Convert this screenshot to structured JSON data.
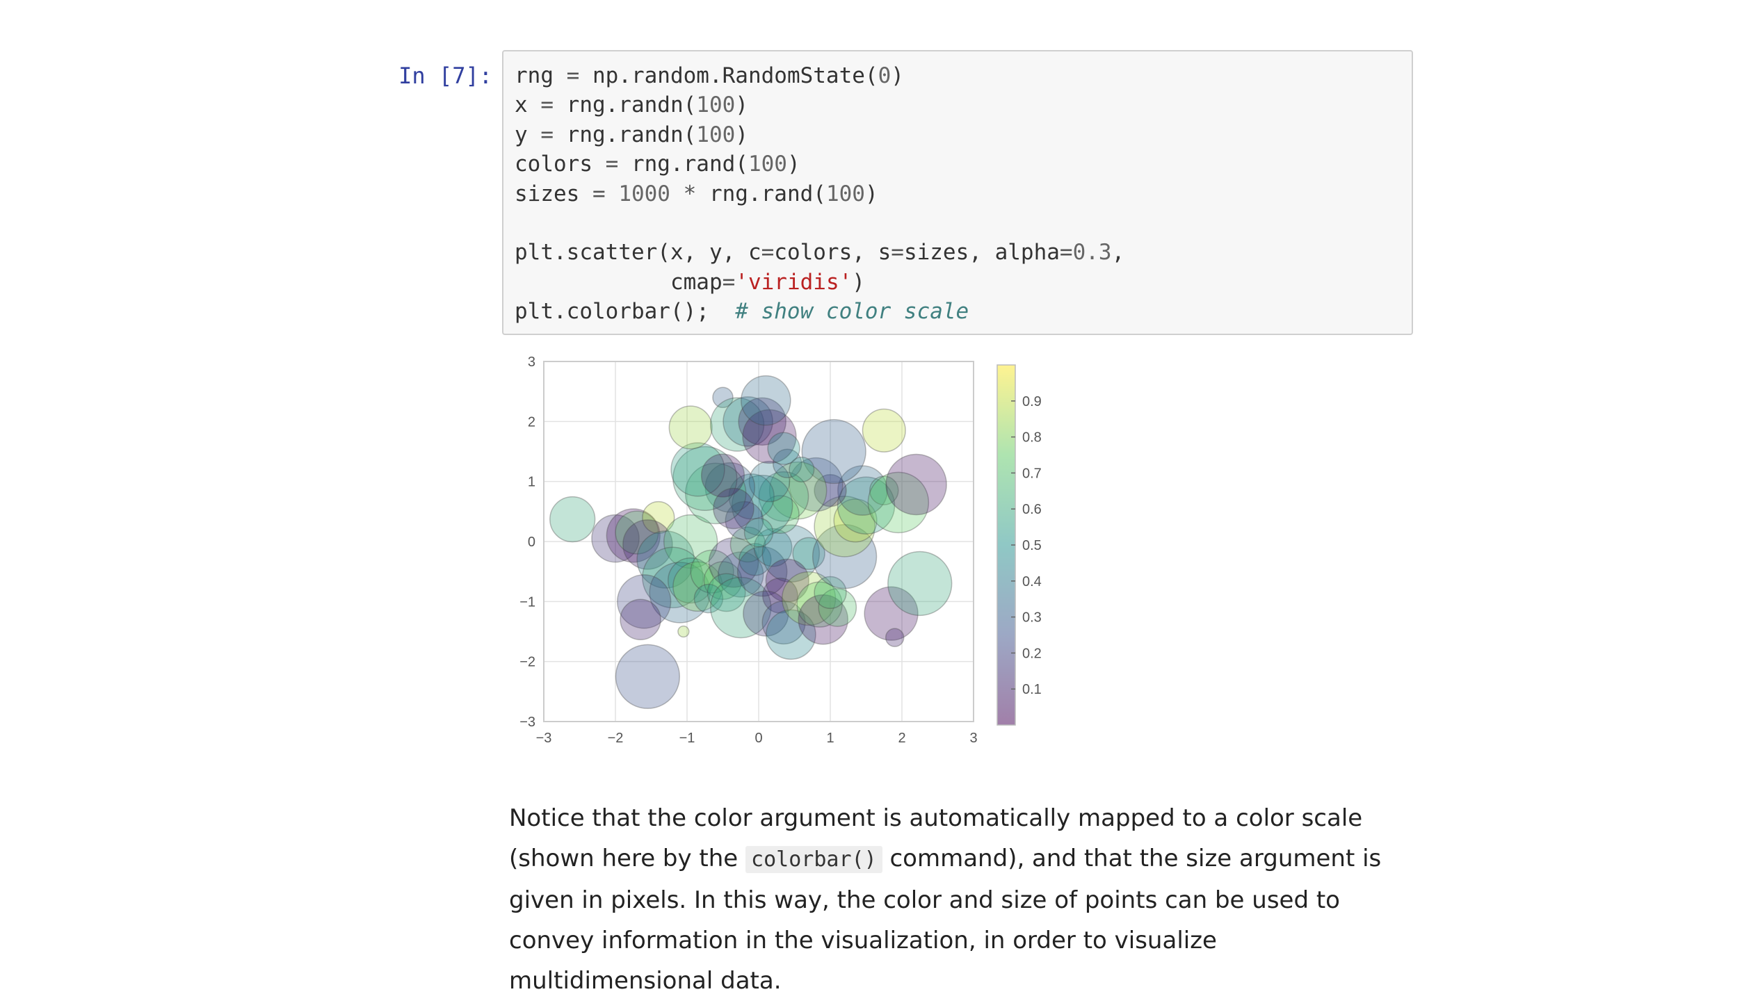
{
  "cell": {
    "prompt": "In [7]:",
    "code": [
      [
        [
          "rng ",
          ""
        ],
        [
          "= ",
          "op"
        ],
        [
          "np.random.RandomState(",
          ""
        ],
        [
          "0",
          "num"
        ],
        [
          ")",
          ""
        ]
      ],
      [
        [
          "x ",
          ""
        ],
        [
          "= ",
          "op"
        ],
        [
          "rng.randn(",
          ""
        ],
        [
          "100",
          "num"
        ],
        [
          ")",
          ""
        ]
      ],
      [
        [
          "y ",
          ""
        ],
        [
          "= ",
          "op"
        ],
        [
          "rng.randn(",
          ""
        ],
        [
          "100",
          "num"
        ],
        [
          ")",
          ""
        ]
      ],
      [
        [
          "colors ",
          ""
        ],
        [
          "= ",
          "op"
        ],
        [
          "rng.rand(",
          ""
        ],
        [
          "100",
          "num"
        ],
        [
          ")",
          ""
        ]
      ],
      [
        [
          "sizes ",
          ""
        ],
        [
          "= ",
          "op"
        ],
        [
          "1000",
          "num"
        ],
        [
          " * ",
          "op"
        ],
        [
          "rng.rand(",
          ""
        ],
        [
          "100",
          "num"
        ],
        [
          ")",
          ""
        ]
      ],
      [],
      [
        [
          "plt.scatter(x, y, c",
          ""
        ],
        [
          "=",
          "op"
        ],
        [
          "colors, s",
          ""
        ],
        [
          "=",
          "op"
        ],
        [
          "sizes, alpha",
          ""
        ],
        [
          "=",
          "op"
        ],
        [
          "0.3",
          "num"
        ],
        [
          ",",
          ""
        ]
      ],
      [
        [
          "            cmap",
          ""
        ],
        [
          "=",
          "op"
        ],
        [
          "'viridis'",
          "str"
        ],
        [
          ")",
          ""
        ]
      ],
      [
        [
          "plt.colorbar();  ",
          ""
        ],
        [
          "# show color scale",
          "com"
        ]
      ]
    ]
  },
  "chart_data": {
    "type": "scatter",
    "title": "",
    "xlabel": "",
    "ylabel": "",
    "xlim": [
      -3,
      3
    ],
    "ylim": [
      -3,
      3
    ],
    "xticks": [
      "−3",
      "−2",
      "−1",
      "0",
      "1",
      "2",
      "3"
    ],
    "yticks": [
      "−3",
      "−2",
      "−1",
      "0",
      "1",
      "2",
      "3"
    ],
    "grid": true,
    "alpha": 0.3,
    "colormap": "viridis",
    "colorbar": {
      "range": [
        0,
        1
      ],
      "ticks": [
        "0.1",
        "0.2",
        "0.3",
        "0.4",
        "0.5",
        "0.6",
        "0.7",
        "0.8",
        "0.9"
      ],
      "tick_values": [
        0.1,
        0.2,
        0.3,
        0.4,
        0.5,
        0.6,
        0.7,
        0.8,
        0.9
      ]
    },
    "points": [
      {
        "x": -2.6,
        "y": 0.37,
        "c": 0.6,
        "s": 500
      },
      {
        "x": -2.0,
        "y": 0.05,
        "c": 0.15,
        "s": 550
      },
      {
        "x": -1.75,
        "y": 0.1,
        "c": 0.05,
        "s": 700
      },
      {
        "x": -1.7,
        "y": 0.15,
        "c": 0.72,
        "s": 450
      },
      {
        "x": -1.4,
        "y": 0.4,
        "c": 0.9,
        "s": 250
      },
      {
        "x": -1.55,
        "y": -0.05,
        "c": 0.1,
        "s": 600
      },
      {
        "x": -1.3,
        "y": -0.3,
        "c": 0.45,
        "s": 800
      },
      {
        "x": -0.95,
        "y": 0.0,
        "c": 0.7,
        "s": 700
      },
      {
        "x": -1.2,
        "y": -0.6,
        "c": 0.6,
        "s": 900
      },
      {
        "x": -1.1,
        "y": -0.85,
        "c": 0.35,
        "s": 900
      },
      {
        "x": -0.95,
        "y": -0.65,
        "c": 0.55,
        "s": 500
      },
      {
        "x": -0.85,
        "y": -0.75,
        "c": 0.8,
        "s": 600
      },
      {
        "x": -1.6,
        "y": -1.0,
        "c": 0.2,
        "s": 700
      },
      {
        "x": -1.65,
        "y": -1.3,
        "c": 0.1,
        "s": 400
      },
      {
        "x": -1.55,
        "y": -2.25,
        "c": 0.25,
        "s": 1000
      },
      {
        "x": -1.05,
        "y": -1.5,
        "c": 0.85,
        "s": 30
      },
      {
        "x": -0.65,
        "y": -0.5,
        "c": 0.7,
        "s": 450
      },
      {
        "x": -0.5,
        "y": -0.65,
        "c": 0.75,
        "s": 350
      },
      {
        "x": -0.25,
        "y": -0.55,
        "c": 0.4,
        "s": 500
      },
      {
        "x": -0.35,
        "y": -0.35,
        "c": 0.15,
        "s": 600
      },
      {
        "x": -0.7,
        "y": -0.95,
        "c": 0.45,
        "s": 200
      },
      {
        "x": -0.45,
        "y": -0.85,
        "c": 0.55,
        "s": 350
      },
      {
        "x": -0.25,
        "y": -1.1,
        "c": 0.6,
        "s": 900
      },
      {
        "x": -0.15,
        "y": -0.05,
        "c": 0.7,
        "s": 300
      },
      {
        "x": -0.05,
        "y": -0.3,
        "c": 0.5,
        "s": 250
      },
      {
        "x": 0.05,
        "y": -0.5,
        "c": 0.2,
        "s": 600
      },
      {
        "x": 0.2,
        "y": -0.1,
        "c": 0.45,
        "s": 350
      },
      {
        "x": 0.45,
        "y": -0.2,
        "c": 0.4,
        "s": 800
      },
      {
        "x": 0.7,
        "y": -0.2,
        "c": 0.55,
        "s": 250
      },
      {
        "x": 0.4,
        "y": -0.65,
        "c": 0.05,
        "s": 450
      },
      {
        "x": 0.3,
        "y": -0.9,
        "c": 0.1,
        "s": 300
      },
      {
        "x": 0.1,
        "y": -1.2,
        "c": 0.15,
        "s": 500
      },
      {
        "x": 0.35,
        "y": -1.35,
        "c": 0.25,
        "s": 450
      },
      {
        "x": 0.45,
        "y": -1.55,
        "c": 0.45,
        "s": 600
      },
      {
        "x": 0.7,
        "y": -0.95,
        "c": 0.85,
        "s": 700
      },
      {
        "x": 0.85,
        "y": -1.05,
        "c": 0.75,
        "s": 500
      },
      {
        "x": 0.9,
        "y": -1.3,
        "c": 0.05,
        "s": 600
      },
      {
        "x": 1.1,
        "y": -1.1,
        "c": 0.7,
        "s": 350
      },
      {
        "x": 1.0,
        "y": -0.85,
        "c": 0.65,
        "s": 250
      },
      {
        "x": 1.85,
        "y": -1.2,
        "c": 0.05,
        "s": 700
      },
      {
        "x": 1.9,
        "y": -1.6,
        "c": 0.1,
        "s": 80
      },
      {
        "x": 2.25,
        "y": -0.7,
        "c": 0.6,
        "s": 1000
      },
      {
        "x": 1.2,
        "y": -0.25,
        "c": 0.3,
        "s": 1000
      },
      {
        "x": 1.2,
        "y": 0.25,
        "c": 0.85,
        "s": 900
      },
      {
        "x": 1.35,
        "y": 0.35,
        "c": 0.9,
        "s": 450
      },
      {
        "x": 1.5,
        "y": 0.6,
        "c": 0.55,
        "s": 800
      },
      {
        "x": 1.45,
        "y": 0.85,
        "c": 0.35,
        "s": 600
      },
      {
        "x": 1.75,
        "y": 0.85,
        "c": 0.65,
        "s": 200
      },
      {
        "x": 1.95,
        "y": 0.65,
        "c": 0.75,
        "s": 900
      },
      {
        "x": 2.2,
        "y": 0.95,
        "c": 0.05,
        "s": 900
      },
      {
        "x": 1.0,
        "y": 0.85,
        "c": 0.1,
        "s": 250
      },
      {
        "x": 0.8,
        "y": 0.95,
        "c": 0.25,
        "s": 700
      },
      {
        "x": 1.05,
        "y": 1.5,
        "c": 0.3,
        "s": 1000
      },
      {
        "x": 1.75,
        "y": 1.85,
        "c": 0.9,
        "s": 450
      },
      {
        "x": 0.55,
        "y": 0.85,
        "c": 0.8,
        "s": 800
      },
      {
        "x": 0.35,
        "y": 0.75,
        "c": 0.65,
        "s": 600
      },
      {
        "x": 0.3,
        "y": 0.45,
        "c": 0.7,
        "s": 350
      },
      {
        "x": 0.05,
        "y": 0.6,
        "c": 0.45,
        "s": 900
      },
      {
        "x": -0.1,
        "y": 0.75,
        "c": 0.5,
        "s": 500
      },
      {
        "x": 0.15,
        "y": 1.0,
        "c": 0.4,
        "s": 400
      },
      {
        "x": -0.2,
        "y": 0.35,
        "c": 0.2,
        "s": 350
      },
      {
        "x": 0.0,
        "y": 0.15,
        "c": 0.55,
        "s": 200
      },
      {
        "x": 0.4,
        "y": 1.3,
        "c": 0.35,
        "s": 200
      },
      {
        "x": 0.6,
        "y": 1.2,
        "c": 0.55,
        "s": 150
      },
      {
        "x": -0.4,
        "y": 0.9,
        "c": 0.3,
        "s": 600
      },
      {
        "x": -0.6,
        "y": 0.8,
        "c": 0.65,
        "s": 900
      },
      {
        "x": -0.75,
        "y": 1.05,
        "c": 0.6,
        "s": 1000
      },
      {
        "x": -0.85,
        "y": 1.2,
        "c": 0.55,
        "s": 700
      },
      {
        "x": -0.5,
        "y": 1.1,
        "c": 0.05,
        "s": 450
      },
      {
        "x": -0.35,
        "y": 0.55,
        "c": 0.1,
        "s": 400
      },
      {
        "x": -0.95,
        "y": 1.9,
        "c": 0.85,
        "s": 450
      },
      {
        "x": -0.5,
        "y": 2.4,
        "c": 0.3,
        "s": 100
      },
      {
        "x": -0.3,
        "y": 1.95,
        "c": 0.6,
        "s": 700
      },
      {
        "x": -0.15,
        "y": 2.0,
        "c": 0.4,
        "s": 600
      },
      {
        "x": 0.05,
        "y": 2.0,
        "c": 0.1,
        "s": 550
      },
      {
        "x": 0.15,
        "y": 1.75,
        "c": 0.05,
        "s": 700
      },
      {
        "x": 0.1,
        "y": 2.35,
        "c": 0.35,
        "s": 600
      },
      {
        "x": 0.35,
        "y": 1.55,
        "c": 0.5,
        "s": 250
      }
    ]
  },
  "prose": {
    "before": "Notice that the color argument is automatically mapped to a color scale (shown here by the ",
    "code": "colorbar()",
    "after": " command), and that the size argument is given in pixels. In this way, the color and size of points can be used to convey information in the visualization, in order to visualize multidimensional data."
  }
}
